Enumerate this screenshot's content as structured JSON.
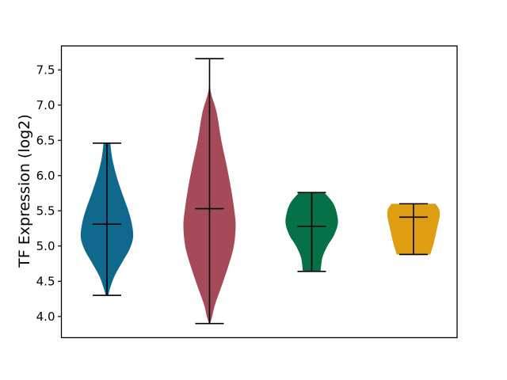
{
  "chart_data": {
    "type": "violin",
    "title": "",
    "xlabel": "",
    "ylabel": "TF Expression (log2)",
    "x_tick_labels": [],
    "yticks": [
      7.5,
      7.0,
      6.5,
      6.0,
      5.5,
      5.0,
      4.5,
      4.0
    ],
    "ylim": [
      3.7,
      7.84
    ],
    "grid": false,
    "legend": false,
    "line_color": "#000000",
    "series": [
      {
        "color": "#10688c",
        "whisker_min": 4.3,
        "whisker_max": 6.46,
        "median": 5.31,
        "profile": [
          [
            6.46,
            0.13
          ],
          [
            6.25,
            0.2
          ],
          [
            6.0,
            0.36
          ],
          [
            5.75,
            0.58
          ],
          [
            5.5,
            0.82
          ],
          [
            5.3,
            0.96
          ],
          [
            5.12,
            1.0
          ],
          [
            4.95,
            0.86
          ],
          [
            4.78,
            0.6
          ],
          [
            4.58,
            0.3
          ],
          [
            4.4,
            0.12
          ],
          [
            4.3,
            0.05
          ]
        ]
      },
      {
        "color": "#a54a59",
        "whisker_min": 3.9,
        "whisker_max": 7.66,
        "median": 5.53,
        "profile": [
          [
            7.45,
            0.02
          ],
          [
            7.2,
            0.04
          ],
          [
            6.9,
            0.27
          ],
          [
            6.5,
            0.45
          ],
          [
            6.15,
            0.65
          ],
          [
            5.8,
            0.83
          ],
          [
            5.5,
            0.95
          ],
          [
            5.28,
            1.0
          ],
          [
            5.0,
            0.93
          ],
          [
            4.75,
            0.75
          ],
          [
            4.45,
            0.48
          ],
          [
            4.18,
            0.22
          ],
          [
            4.0,
            0.1
          ],
          [
            3.91,
            0.03
          ]
        ]
      },
      {
        "color": "#067047",
        "whisker_min": 4.64,
        "whisker_max": 5.76,
        "median": 5.28,
        "profile": [
          [
            5.76,
            0.48
          ],
          [
            5.62,
            0.8
          ],
          [
            5.48,
            0.95
          ],
          [
            5.32,
            1.0
          ],
          [
            5.15,
            0.85
          ],
          [
            5.0,
            0.6
          ],
          [
            4.85,
            0.42
          ],
          [
            4.72,
            0.36
          ],
          [
            4.64,
            0.34
          ]
        ]
      },
      {
        "color": "#df9d12",
        "whisker_min": 4.88,
        "whisker_max": 5.6,
        "median": 5.41,
        "profile": [
          [
            5.6,
            0.84
          ],
          [
            5.52,
            0.98
          ],
          [
            5.42,
            1.0
          ],
          [
            5.25,
            0.9
          ],
          [
            5.05,
            0.78
          ],
          [
            4.95,
            0.7
          ],
          [
            4.88,
            0.64
          ]
        ]
      }
    ]
  }
}
